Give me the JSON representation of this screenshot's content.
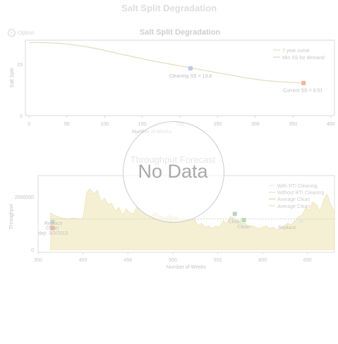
{
  "page": {
    "title": "Salt Split Degradation"
  },
  "option": {
    "label": "Option"
  },
  "chart_data": [
    {
      "type": "line",
      "title": "Salt Split Degradation",
      "xlabel": "Number of Weeks",
      "ylabel": "Salt Split",
      "xlim": [
        -5,
        405
      ],
      "ylim": [
        0,
        22
      ],
      "xticks": [
        "0",
        "50",
        "100",
        "150",
        "200",
        "250",
        "300",
        "350",
        "400"
      ],
      "yticks": [
        "0",
        "15"
      ],
      "legend": "top-right",
      "grid": false,
      "series": [
        {
          "name": "7 year curve",
          "color": "#e6e0c2",
          "x": [
            0,
            15,
            30,
            45,
            60,
            75,
            90,
            105,
            120,
            135,
            150,
            165,
            180,
            195,
            210,
            225,
            240,
            255,
            270,
            285,
            300,
            315,
            330,
            345,
            360,
            364
          ],
          "y": [
            21.3,
            21.3,
            21.2,
            21.0,
            20.6,
            20.1,
            19.5,
            18.8,
            18.0,
            17.3,
            16.6,
            15.9,
            15.3,
            14.7,
            14.1,
            13.5,
            12.9,
            12.3,
            11.7,
            11.1,
            10.6,
            10.2,
            9.9,
            9.7,
            9.55,
            9.51
          ]
        },
        {
          "name": "Min SS for demand",
          "color": "#d0d8d0",
          "x": [],
          "y": []
        }
      ],
      "points": [
        {
          "label": "Cleaning SS = 13.8",
          "x": 214,
          "y": 13.8,
          "color": "#b9c8ec"
        },
        {
          "label": "Current SS = 9.51",
          "x": 364,
          "y": 9.51,
          "color": "#f4b2a2"
        }
      ]
    },
    {
      "type": "area",
      "title": "Throughput Forecast",
      "xlabel": "Number of Weeks",
      "ylabel": "Throughput",
      "xlim": [
        350,
        680
      ],
      "ylim": [
        -100000,
        2800000
      ],
      "xticks": [
        "350",
        "400",
        "450",
        "500",
        "550",
        "600",
        "650"
      ],
      "yticks": [
        "0",
        "2000000"
      ],
      "legend": "top-right",
      "grid": false,
      "series": [
        {
          "name": "With RTI Cleaning",
          "color": "#f2ebc6",
          "style": "area",
          "x": [
            364,
            368,
            372,
            376,
            380,
            384,
            388,
            392,
            396,
            400,
            404,
            408,
            412,
            416,
            420,
            424,
            428,
            432,
            436,
            440,
            444,
            448,
            452,
            456,
            460,
            464,
            468,
            472,
            476,
            480,
            484,
            488,
            492,
            496,
            500,
            504,
            508,
            512,
            516,
            520,
            524,
            528,
            532,
            536,
            540,
            544,
            548,
            552,
            556,
            560,
            564,
            568,
            572,
            576,
            580,
            584,
            588,
            592,
            596,
            600,
            604,
            608,
            612,
            616,
            620,
            624,
            628,
            632,
            636,
            640,
            644,
            648,
            652,
            656,
            660,
            664,
            668,
            672,
            676,
            680
          ],
          "y": [
            1400000,
            1300000,
            1250000,
            1200000,
            1180000,
            1150000,
            1200000,
            1180000,
            1150000,
            1200000,
            2150000,
            2300000,
            2100000,
            2250000,
            1800000,
            1950000,
            1700000,
            1750000,
            1450000,
            1600000,
            1300000,
            1550000,
            1400000,
            1350000,
            1600000,
            1450000,
            1350000,
            1300000,
            1250000,
            1400000,
            1300000,
            1250000,
            1200000,
            1300000,
            1200000,
            1250000,
            1100000,
            1150000,
            1150000,
            1100000,
            1150000,
            900000,
            1000000,
            850000,
            900000,
            800000,
            900000,
            850000,
            1100000,
            1000000,
            1250000,
            1200000,
            1100000,
            1000000,
            1000000,
            900000,
            900000,
            850000,
            800000,
            850000,
            900000,
            800000,
            850000,
            750000,
            800000,
            900000,
            1000000,
            950000,
            1100000,
            1250000,
            1300000,
            1600000,
            1500000,
            1800000,
            1700000,
            1450000,
            1900000,
            2100000,
            1700000,
            1400000
          ]
        },
        {
          "name": "Without RTI Cleaning",
          "color": "#f0dcc0",
          "style": "line",
          "x": [],
          "y": []
        },
        {
          "name": "Average Clean",
          "color": "#c9d5c9",
          "style": "dashed",
          "x": [
            364,
            680
          ],
          "y": [
            1160000,
            1160000
          ]
        },
        {
          "name": "Average Clean",
          "color": "#ebe0bc",
          "style": "line",
          "x": [],
          "y": []
        }
      ],
      "points": [
        {
          "label": "Replace",
          "x": 366,
          "y": 1050000,
          "color": "#c8d6c8"
        },
        {
          "label": "Clean",
          "x": 366,
          "y": 820000,
          "color": "#f4b2a2"
        },
        {
          "label": "Clean",
          "x": 569,
          "y": 1350000,
          "color": "#b2dcb2"
        },
        {
          "label": "Clean",
          "x": 579,
          "y": 1120000,
          "color": "#b2dcb2"
        },
        {
          "label": "Replace",
          "x": 643,
          "y": 1100000,
          "color": "#e6e6e6"
        }
      ],
      "annotations": [
        {
          "label": "day: 3/3/2015",
          "x": 352,
          "y": 620000
        }
      ]
    }
  ],
  "overlay": {
    "subtitle": "Throughput Forecast",
    "message": "No Data"
  }
}
